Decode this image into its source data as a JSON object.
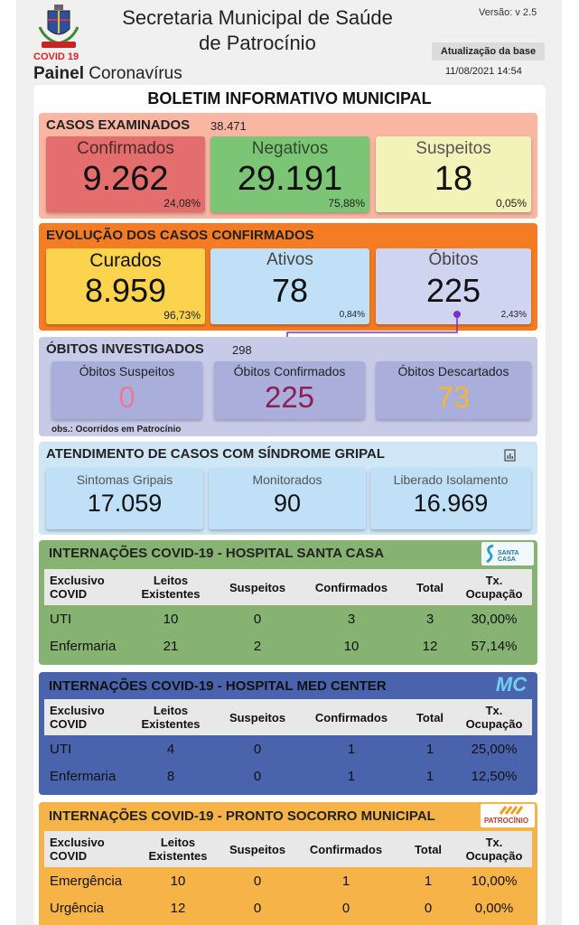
{
  "header": {
    "title_line1": "Secretaria Municipal de Saúde",
    "title_line2": "de Patrocínio",
    "version": "Versão: v 2.5",
    "update_button": "Atualização da base",
    "timestamp": "11/08/2021 14:54",
    "covid_label": "COVID 19",
    "painel_bold": "Painel",
    "painel_rest": " Coronavírus"
  },
  "boletim_title": "BOLETIM INFORMATIVO MUNICIPAL",
  "casos": {
    "title": "CASOS EXAMINADOS",
    "total": "38.471",
    "boxes": [
      {
        "label": "Confirmados",
        "value": "9.262",
        "pct": "24,08%"
      },
      {
        "label": "Negativos",
        "value": "29.191",
        "pct": "75,88%"
      },
      {
        "label": "Suspeitos",
        "value": "18",
        "pct": "0,05%"
      }
    ]
  },
  "evolucao": {
    "title": "EVOLUÇÃO DOS CASOS CONFIRMADOS",
    "boxes": [
      {
        "label": "Curados",
        "value": "8.959",
        "pct": "96,73%"
      },
      {
        "label": "Ativos",
        "value": "78",
        "pct": "0,84%"
      },
      {
        "label": "Óbitos",
        "value": "225",
        "pct": "2,43%"
      }
    ]
  },
  "obitos": {
    "title": "ÓBITOS INVESTIGADOS",
    "total": "298",
    "boxes": [
      {
        "label": "Óbitos Suspeitos",
        "value": "0"
      },
      {
        "label": "Óbitos Confirmados",
        "value": "225"
      },
      {
        "label": "Óbitos Descartados",
        "value": "73"
      }
    ],
    "obs": "obs.: Ocorridos em Patrocínio"
  },
  "atendimento": {
    "title": "ATENDIMENTO DE CASOS COM SÍNDROME GRIPAL",
    "boxes": [
      {
        "label": "Sintomas Gripais",
        "value": "17.059"
      },
      {
        "label": "Monitorados",
        "value": "90"
      },
      {
        "label": "Liberado Isolamento",
        "value": "16.969"
      }
    ]
  },
  "santa_casa": {
    "title": "INTERNAÇÕES COVID-19 - HOSPITAL SANTA CASA",
    "logo_text": "SANTA CASA",
    "headers": [
      "Exclusivo COVID",
      "Leitos Existentes",
      "Suspeitos",
      "Confirmados",
      "Total",
      "Tx. Ocupação"
    ],
    "rows": [
      [
        "UTI",
        "10",
        "0",
        "3",
        "3",
        "30,00%"
      ],
      [
        "Enfermaria",
        "21",
        "2",
        "10",
        "12",
        "57,14%"
      ]
    ]
  },
  "med_center": {
    "title": "INTERNAÇÕES COVID-19 - HOSPITAL MED CENTER",
    "logo_text": "MC",
    "headers": [
      "Exclusivo COVID",
      "Leitos Existentes",
      "Suspeitos",
      "Confirmados",
      "Total",
      "Tx. Ocupação"
    ],
    "rows": [
      [
        "UTI",
        "4",
        "0",
        "1",
        "1",
        "25,00%"
      ],
      [
        "Enfermaria",
        "8",
        "0",
        "1",
        "1",
        "12,50%"
      ]
    ]
  },
  "pronto_socorro": {
    "title": "INTERNAÇÕES COVID-19 - PRONTO SOCORRO MUNICIPAL",
    "logo_text": "PATROCÍNIO",
    "headers": [
      "Exclusivo COVID",
      "Leitos Existentes",
      "Suspeitos",
      "Confirmados",
      "Total",
      "Tx. Ocupação"
    ],
    "rows": [
      [
        "Emergência",
        "10",
        "0",
        "1",
        "1",
        "10,00%"
      ],
      [
        "Urgência",
        "12",
        "0",
        "0",
        "0",
        "0,00%"
      ]
    ]
  },
  "colors": {
    "casos_bg": "#f9b7a3",
    "confirmados": "#e46d6d",
    "negativos": "#7cc576",
    "suspeitos": "#f3f2b8",
    "evolucao_bg": "#f57c22",
    "curados": "#fcd34d",
    "ativos": "#bfe0f7",
    "obitos_box": "#cfd4f0",
    "obitos_bg": "#c7cbe8",
    "atendimento_bg": "#cfe6f7",
    "santa_casa_bg": "#86b272",
    "med_center_bg": "#4a63ad",
    "pronto_socorro_bg": "#f6b348",
    "obito_suspeito_value": "#e97a97",
    "obito_confirmado_value": "#8e1f55",
    "obito_descartado_value": "#f5b731"
  }
}
